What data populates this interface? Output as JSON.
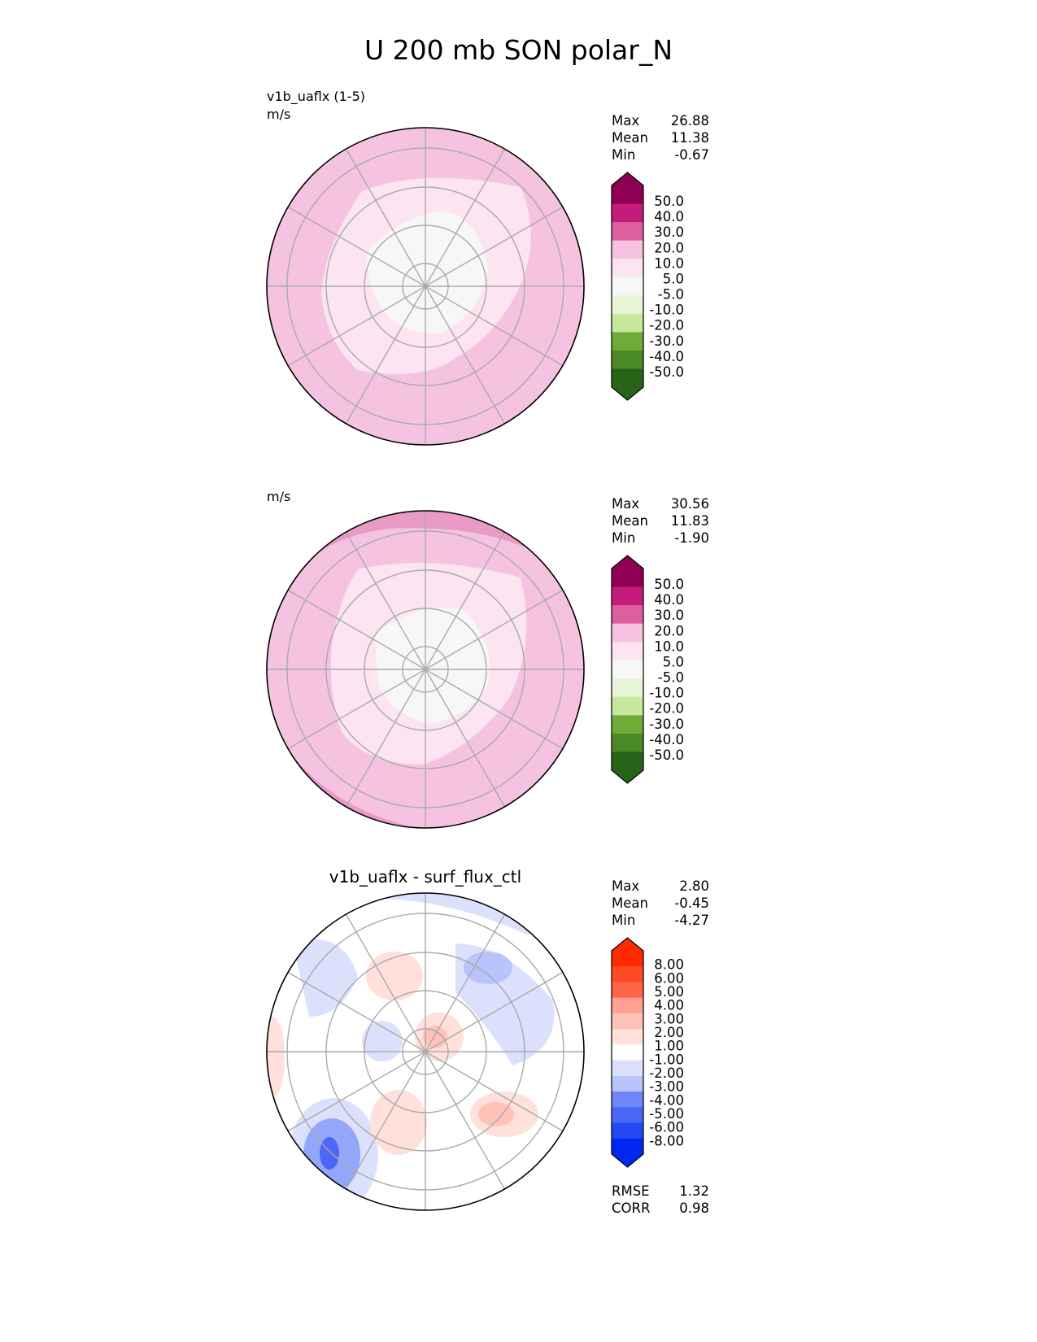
{
  "title": "U 200 mb SON polar_N",
  "panels": [
    {
      "name": "test",
      "label": "v1b_uaflx (1-5)",
      "units": "m/s",
      "center_title": "",
      "stats": [
        {
          "k": "Max",
          "v": "26.88"
        },
        {
          "k": "Mean",
          "v": "11.38"
        },
        {
          "k": "Min",
          "v": "-0.67"
        }
      ],
      "colorbar": {
        "labels": [
          "50.0",
          "40.0",
          "30.0",
          "20.0",
          "10.0",
          "5.0",
          "-5.0",
          "-10.0",
          "-20.0",
          "-30.0",
          "-40.0",
          "-50.0"
        ],
        "colors": [
          "#8e0152",
          "#c51b7d",
          "#de5fa0",
          "#e99bc6",
          "#f5c3e0",
          "#fce4f0",
          "#f7f7f7",
          "#e7f5d6",
          "#c8e89e",
          "#9ccd60",
          "#6eab37",
          "#4b8a26",
          "#276419"
        ]
      }
    },
    {
      "name": "reference",
      "label": "",
      "units": "m/s",
      "center_title": "",
      "stats": [
        {
          "k": "Max",
          "v": "30.56"
        },
        {
          "k": "Mean",
          "v": "11.83"
        },
        {
          "k": "Min",
          "v": "-1.90"
        }
      ],
      "colorbar": {
        "labels": [
          "50.0",
          "40.0",
          "30.0",
          "20.0",
          "10.0",
          "5.0",
          "-5.0",
          "-10.0",
          "-20.0",
          "-30.0",
          "-40.0",
          "-50.0"
        ],
        "colors": [
          "#8e0152",
          "#c51b7d",
          "#de5fa0",
          "#e99bc6",
          "#f5c3e0",
          "#fce4f0",
          "#f7f7f7",
          "#e7f5d6",
          "#c8e89e",
          "#9ccd60",
          "#6eab37",
          "#4b8a26",
          "#276419"
        ]
      }
    },
    {
      "name": "difference",
      "label": "",
      "units": "",
      "center_title": "v1b_uaflx - surf_flux_ctl",
      "stats": [
        {
          "k": "Max",
          "v": "2.80"
        },
        {
          "k": "Mean",
          "v": "-0.45"
        },
        {
          "k": "Min",
          "v": "-4.27"
        }
      ],
      "colorbar": {
        "labels": [
          "8.00",
          "6.00",
          "5.00",
          "4.00",
          "3.00",
          "2.00",
          "1.00",
          "-1.00",
          "-2.00",
          "-3.00",
          "-4.00",
          "-5.00",
          "-6.00",
          "-8.00"
        ],
        "colors": [
          "#ff2a00",
          "#ff4a28",
          "#ff6648",
          "#ff8670",
          "#ffa292",
          "#ffc2b6",
          "#ffe0da",
          "#ffffff",
          "#dbe1fc",
          "#b8c4fb",
          "#94a6fa",
          "#6f86f8",
          "#4a67f6",
          "#2448f4",
          "#0028f0"
        ]
      },
      "metrics": [
        {
          "k": "RMSE",
          "v": "1.32"
        },
        {
          "k": "CORR",
          "v": "0.98"
        }
      ]
    }
  ]
}
